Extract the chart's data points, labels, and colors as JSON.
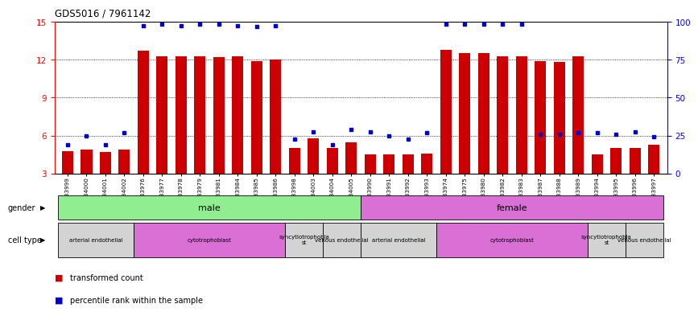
{
  "title": "GDS5016 / 7961142",
  "samples": [
    "GSM1083999",
    "GSM1084000",
    "GSM1084001",
    "GSM1084002",
    "GSM1083976",
    "GSM1083977",
    "GSM1083978",
    "GSM1083979",
    "GSM1083981",
    "GSM1083984",
    "GSM1083985",
    "GSM1083986",
    "GSM1083998",
    "GSM1084003",
    "GSM1084004",
    "GSM1084005",
    "GSM1083990",
    "GSM1083991",
    "GSM1083992",
    "GSM1083993",
    "GSM1083974",
    "GSM1083975",
    "GSM1083980",
    "GSM1083982",
    "GSM1083983",
    "GSM1083987",
    "GSM1083988",
    "GSM1083989",
    "GSM1083994",
    "GSM1083995",
    "GSM1083996",
    "GSM1083997"
  ],
  "red_values": [
    4.8,
    4.9,
    4.7,
    4.9,
    12.7,
    12.3,
    12.3,
    12.3,
    12.2,
    12.3,
    11.9,
    12.0,
    5.0,
    5.8,
    5.0,
    5.5,
    4.5,
    4.5,
    4.5,
    4.6,
    12.8,
    12.5,
    12.5,
    12.3,
    12.3,
    11.9,
    11.8,
    12.3,
    4.5,
    5.0,
    5.0,
    5.3
  ],
  "blue_values": [
    5.3,
    6.0,
    5.3,
    6.2,
    14.7,
    14.8,
    14.7,
    14.8,
    14.8,
    14.7,
    14.6,
    14.7,
    5.7,
    6.3,
    5.3,
    6.5,
    6.3,
    6.0,
    5.7,
    6.2,
    14.8,
    14.8,
    14.8,
    14.8,
    14.8,
    6.1,
    6.1,
    6.2,
    6.2,
    6.1,
    6.3,
    5.9
  ],
  "ylim_left": [
    3,
    15
  ],
  "ylim_right": [
    0,
    100
  ],
  "yticks_left": [
    3,
    6,
    9,
    12,
    15
  ],
  "yticks_right": [
    0,
    25,
    50,
    75,
    100
  ],
  "bar_color": "#cc0000",
  "dot_color": "#0000cc",
  "gender_colors": {
    "male": "#90ee90",
    "female": "#da70d6"
  },
  "gender_groups": [
    {
      "label": "male",
      "start": 0,
      "end": 15
    },
    {
      "label": "female",
      "start": 16,
      "end": 31
    }
  ],
  "cell_type_groups": [
    {
      "label": "arterial endothelial",
      "start": 0,
      "end": 3,
      "color": "#d3d3d3"
    },
    {
      "label": "cytotrophoblast",
      "start": 4,
      "end": 11,
      "color": "#da70d6"
    },
    {
      "label": "syncytiotrophoblast",
      "start": 12,
      "end": 13,
      "color": "#d3d3d3"
    },
    {
      "label": "venous endothelial",
      "start": 14,
      "end": 15,
      "color": "#d3d3d3"
    },
    {
      "label": "arterial endothelial",
      "start": 16,
      "end": 19,
      "color": "#d3d3d3"
    },
    {
      "label": "cytotrophoblast",
      "start": 20,
      "end": 27,
      "color": "#da70d6"
    },
    {
      "label": "syncytiotrophoblast",
      "start": 28,
      "end": 29,
      "color": "#d3d3d3"
    },
    {
      "label": "venous endothelial",
      "start": 30,
      "end": 31,
      "color": "#d3d3d3"
    }
  ],
  "fig_width": 8.85,
  "fig_height": 3.93,
  "dpi": 100
}
